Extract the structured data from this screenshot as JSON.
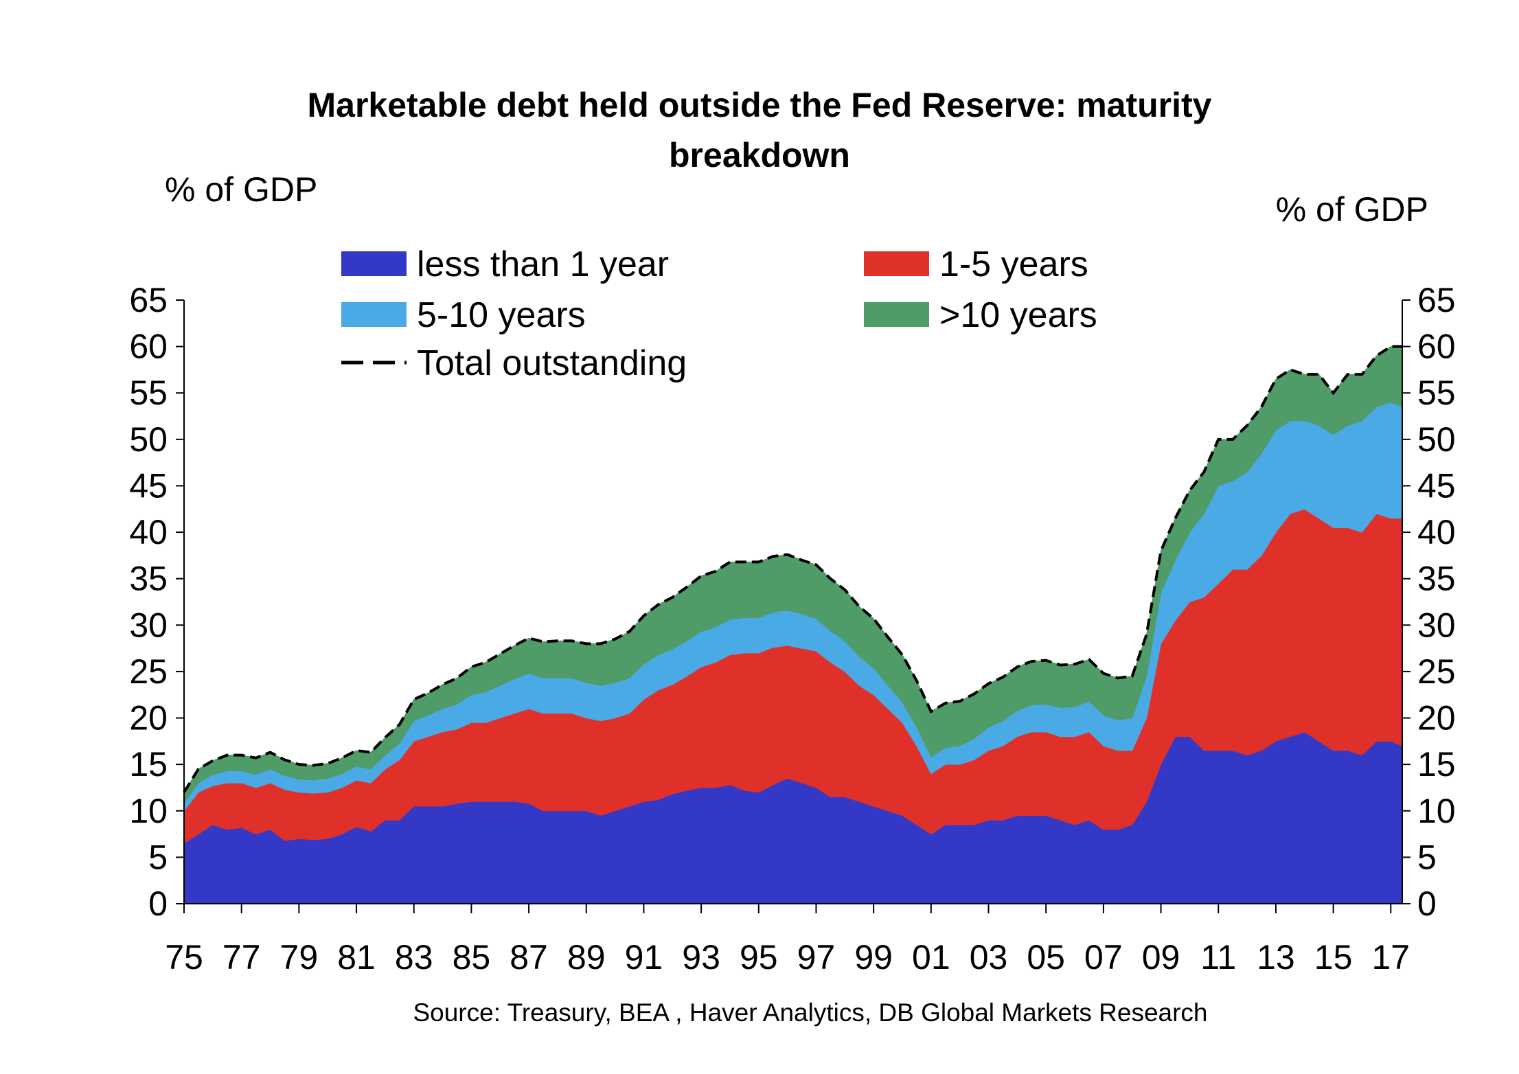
{
  "chart_data": {
    "type": "area",
    "title_line1": "Marketable debt held outside the Fed Reserve: maturity",
    "title_line2": "breakdown",
    "ylabel_left": "% of GDP",
    "ylabel_right": "% of GDP",
    "source": "Source: Treasury, BEA , Haver Analytics, DB Global Markets Research",
    "ylim": [
      0,
      65
    ],
    "yticks": [
      "0",
      "5",
      "10",
      "15",
      "20",
      "25",
      "30",
      "35",
      "40",
      "45",
      "50",
      "55",
      "60",
      "65"
    ],
    "xlim": [
      1975,
      2017.4
    ],
    "xticks": [
      {
        "x": 1975,
        "label": "75"
      },
      {
        "x": 1977,
        "label": "77"
      },
      {
        "x": 1979,
        "label": "79"
      },
      {
        "x": 1981,
        "label": "81"
      },
      {
        "x": 1983,
        "label": "83"
      },
      {
        "x": 1985,
        "label": "85"
      },
      {
        "x": 1987,
        "label": "87"
      },
      {
        "x": 1989,
        "label": "89"
      },
      {
        "x": 1991,
        "label": "91"
      },
      {
        "x": 1993,
        "label": "93"
      },
      {
        "x": 1995,
        "label": "95"
      },
      {
        "x": 1997,
        "label": "97"
      },
      {
        "x": 1999,
        "label": "99"
      },
      {
        "x": 2001,
        "label": "01"
      },
      {
        "x": 2003,
        "label": "03"
      },
      {
        "x": 2005,
        "label": "05"
      },
      {
        "x": 2007,
        "label": "07"
      },
      {
        "x": 2009,
        "label": "09"
      },
      {
        "x": 2011,
        "label": "11"
      },
      {
        "x": 2013,
        "label": "13"
      },
      {
        "x": 2015,
        "label": "15"
      },
      {
        "x": 2017,
        "label": "17"
      }
    ],
    "x": [
      1975.0,
      1975.5,
      1976.0,
      1976.5,
      1977.0,
      1977.5,
      1978.0,
      1978.5,
      1979.0,
      1979.5,
      1980.0,
      1980.5,
      1981.0,
      1981.5,
      1982.0,
      1982.5,
      1983.0,
      1983.5,
      1984.0,
      1984.5,
      1985.0,
      1985.5,
      1986.0,
      1986.5,
      1987.0,
      1987.5,
      1988.0,
      1988.5,
      1989.0,
      1989.5,
      1990.0,
      1990.5,
      1991.0,
      1991.5,
      1992.0,
      1992.5,
      1993.0,
      1993.5,
      1994.0,
      1994.5,
      1995.0,
      1995.5,
      1996.0,
      1996.5,
      1997.0,
      1997.5,
      1998.0,
      1998.5,
      1999.0,
      1999.5,
      2000.0,
      2000.5,
      2001.0,
      2001.5,
      2002.0,
      2002.5,
      2003.0,
      2003.5,
      2004.0,
      2004.5,
      2005.0,
      2005.5,
      2006.0,
      2006.5,
      2007.0,
      2007.5,
      2008.0,
      2008.5,
      2009.0,
      2009.5,
      2010.0,
      2010.5,
      2011.0,
      2011.5,
      2012.0,
      2012.5,
      2013.0,
      2013.5,
      2014.0,
      2014.5,
      2015.0,
      2015.5,
      2016.0,
      2016.5,
      2017.0,
      2017.4
    ],
    "series": [
      {
        "name": "less than 1 year",
        "color": "#3339c6",
        "values": [
          6.5,
          7.5,
          8.5,
          8.0,
          8.2,
          7.5,
          8.0,
          6.8,
          7.0,
          6.9,
          7.0,
          7.5,
          8.3,
          7.8,
          9.0,
          9.0,
          10.5,
          10.5,
          10.5,
          10.8,
          11.0,
          11.0,
          11.0,
          11.0,
          10.8,
          10.0,
          10.0,
          10.0,
          10.0,
          9.5,
          10.0,
          10.5,
          11.0,
          11.2,
          11.8,
          12.2,
          12.5,
          12.5,
          12.8,
          12.2,
          12.0,
          12.8,
          13.5,
          13.0,
          12.5,
          11.5,
          11.5,
          11.0,
          10.5,
          10.0,
          9.5,
          8.5,
          7.5,
          8.5,
          8.5,
          8.5,
          9.0,
          9.0,
          9.5,
          9.5,
          9.5,
          9.0,
          8.5,
          9.0,
          8.0,
          8.0,
          8.5,
          11.0,
          15.0,
          18.0,
          18.0,
          16.5,
          16.5,
          16.5,
          16.0,
          16.5,
          17.5,
          18.0,
          18.5,
          17.5,
          16.5,
          16.5,
          16.0,
          17.5,
          17.5,
          17.0
        ]
      },
      {
        "name": "1-5 years",
        "color": "#e0302a",
        "values": [
          3.5,
          4.5,
          4.2,
          5.0,
          4.8,
          5.0,
          5.0,
          5.5,
          5.0,
          5.0,
          5.0,
          5.0,
          5.0,
          5.2,
          5.5,
          6.5,
          7.0,
          7.5,
          8.0,
          8.0,
          8.5,
          8.5,
          9.0,
          9.5,
          10.2,
          10.5,
          10.5,
          10.5,
          10.0,
          10.2,
          10.0,
          10.0,
          11.0,
          11.8,
          11.8,
          12.3,
          13.0,
          13.5,
          14.0,
          14.8,
          15.0,
          14.8,
          14.3,
          14.5,
          14.7,
          14.5,
          13.5,
          12.5,
          12.0,
          11.0,
          10.0,
          8.5,
          6.5,
          6.5,
          6.5,
          7.0,
          7.5,
          8.0,
          8.5,
          9.0,
          9.0,
          9.0,
          9.5,
          9.5,
          9.0,
          8.5,
          8.0,
          9.0,
          13.0,
          12.5,
          14.5,
          16.5,
          18.0,
          19.5,
          20.0,
          21.0,
          22.5,
          24.0,
          24.0,
          24.0,
          24.0,
          24.0,
          24.0,
          24.5,
          24.0,
          24.5
        ]
      },
      {
        "name": "5-10 years",
        "color": "#4aaae6",
        "values": [
          0.8,
          1.0,
          1.2,
          1.3,
          1.3,
          1.4,
          1.5,
          1.5,
          1.4,
          1.4,
          1.5,
          1.5,
          1.5,
          1.5,
          1.5,
          1.8,
          2.2,
          2.3,
          2.5,
          2.7,
          3.0,
          3.3,
          3.5,
          3.7,
          3.8,
          3.8,
          3.8,
          3.8,
          3.8,
          3.8,
          3.8,
          3.8,
          3.8,
          3.8,
          3.8,
          3.8,
          3.8,
          3.8,
          3.8,
          3.8,
          3.8,
          3.8,
          3.8,
          3.7,
          3.5,
          3.4,
          3.3,
          3.1,
          2.9,
          2.5,
          2.2,
          2.0,
          1.8,
          1.8,
          2.0,
          2.3,
          2.5,
          2.7,
          2.8,
          2.9,
          3.0,
          3.1,
          3.2,
          3.3,
          3.3,
          3.3,
          3.5,
          4.5,
          5.5,
          6.5,
          7.5,
          9.0,
          10.5,
          9.5,
          10.5,
          11.0,
          11.0,
          10.0,
          9.5,
          10.0,
          10.0,
          11.0,
          12.0,
          11.5,
          12.5,
          12.0
        ]
      },
      {
        "name": ">10 years",
        "color": "#4f9c68",
        "values": [
          1.2,
          1.5,
          1.5,
          1.7,
          1.7,
          1.8,
          1.8,
          1.7,
          1.6,
          1.6,
          1.6,
          1.7,
          1.7,
          1.8,
          1.9,
          2.0,
          2.3,
          2.4,
          2.6,
          2.8,
          3.0,
          3.2,
          3.4,
          3.6,
          3.8,
          3.9,
          4.0,
          4.0,
          4.2,
          4.5,
          4.7,
          5.0,
          5.2,
          5.4,
          5.6,
          5.8,
          6.0,
          6.0,
          6.2,
          6.0,
          6.0,
          6.0,
          6.0,
          5.8,
          5.8,
          5.6,
          5.5,
          5.4,
          5.3,
          5.2,
          5.1,
          5.0,
          4.9,
          4.8,
          4.8,
          4.8,
          4.7,
          4.7,
          4.7,
          4.7,
          4.7,
          4.6,
          4.6,
          4.5,
          4.5,
          4.5,
          4.5,
          4.5,
          4.5,
          4.5,
          4.5,
          4.5,
          5.0,
          4.5,
          5.0,
          5.0,
          5.5,
          5.5,
          5.0,
          5.5,
          4.5,
          5.5,
          5.0,
          5.5,
          6.0,
          6.5
        ]
      }
    ],
    "total": {
      "name": "Total outstanding",
      "style": "dashed",
      "color": "#000000"
    },
    "legend": {
      "placement": "top-left",
      "items": [
        {
          "label": "less than 1 year",
          "color": "#3339c6",
          "kind": "swatch"
        },
        {
          "label": "1-5 years",
          "color": "#e0302a",
          "kind": "swatch"
        },
        {
          "label": "5-10 years",
          "color": "#4aaae6",
          "kind": "swatch"
        },
        {
          "label": ">10 years",
          "color": "#4f9c68",
          "kind": "swatch"
        },
        {
          "label": "Total outstanding",
          "color": "#000000",
          "kind": "dash"
        }
      ]
    },
    "grid": false
  }
}
